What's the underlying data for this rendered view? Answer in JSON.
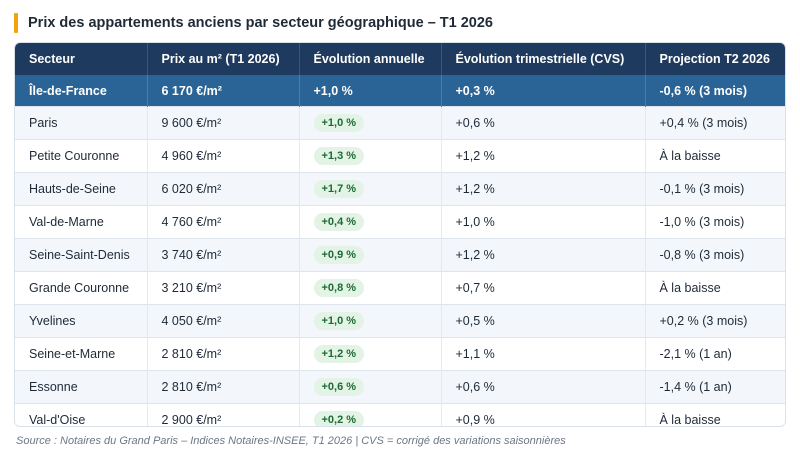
{
  "title": "Prix des appartements anciens par secteur géographique – T1 2026",
  "columns": [
    "Secteur",
    "Prix au m² (T1 2026)",
    "Évolution annuelle",
    "Évolution trimestrielle (CVS)",
    "Projection T2 2026"
  ],
  "summary": {
    "secteur": "Île-de-France",
    "prix": "6 170 €/m²",
    "annuelle": "+1,0 %",
    "trimestrielle": "+0,3 %",
    "projection": "-0,6 % (3 mois)"
  },
  "rows": [
    {
      "secteur": "Paris",
      "prix": "9 600 €/m²",
      "annuelle": "+1,0 %",
      "trimestrielle": "+0,6 %",
      "projection": "+0,4 % (3 mois)"
    },
    {
      "secteur": "Petite Couronne",
      "prix": "4 960 €/m²",
      "annuelle": "+1,3 %",
      "trimestrielle": "+1,2 %",
      "projection": "À la baisse"
    },
    {
      "secteur": "Hauts-de-Seine",
      "prix": "6 020 €/m²",
      "annuelle": "+1,7 %",
      "trimestrielle": "+1,2 %",
      "projection": "-0,1 % (3 mois)"
    },
    {
      "secteur": "Val-de-Marne",
      "prix": "4 760 €/m²",
      "annuelle": "+0,4 %",
      "trimestrielle": "+1,0 %",
      "projection": "-1,0 % (3 mois)"
    },
    {
      "secteur": "Seine-Saint-Denis",
      "prix": "3 740 €/m²",
      "annuelle": "+0,9 %",
      "trimestrielle": "+1,2 %",
      "projection": "-0,8 % (3 mois)"
    },
    {
      "secteur": "Grande Couronne",
      "prix": "3 210 €/m²",
      "annuelle": "+0,8 %",
      "trimestrielle": "+0,7 %",
      "projection": "À la baisse"
    },
    {
      "secteur": "Yvelines",
      "prix": "4 050 €/m²",
      "annuelle": "+1,0 %",
      "trimestrielle": "+0,5 %",
      "projection": "+0,2 % (3 mois)"
    },
    {
      "secteur": "Seine-et-Marne",
      "prix": "2 810 €/m²",
      "annuelle": "+1,2 %",
      "trimestrielle": "+1,1 %",
      "projection": "-2,1 % (1 an)"
    },
    {
      "secteur": "Essonne",
      "prix": "2 810 €/m²",
      "annuelle": "+0,6 %",
      "trimestrielle": "+0,6 %",
      "projection": "-1,4 % (1 an)"
    },
    {
      "secteur": "Val-d'Oise",
      "prix": "2 900 €/m²",
      "annuelle": "+0,2 %",
      "trimestrielle": "+0,9 %",
      "projection": "À la baisse"
    }
  ],
  "source": "Source : Notaires du Grand Paris – Indices Notaires-INSEE, T1 2026 | CVS = corrigé des variations saisonnières",
  "colors": {
    "header": "#1e3a5f",
    "summary": "#2a6496",
    "accent": "#f0a30a",
    "pill_bg": "#e3f3e6",
    "pill_text": "#1d6b33"
  }
}
